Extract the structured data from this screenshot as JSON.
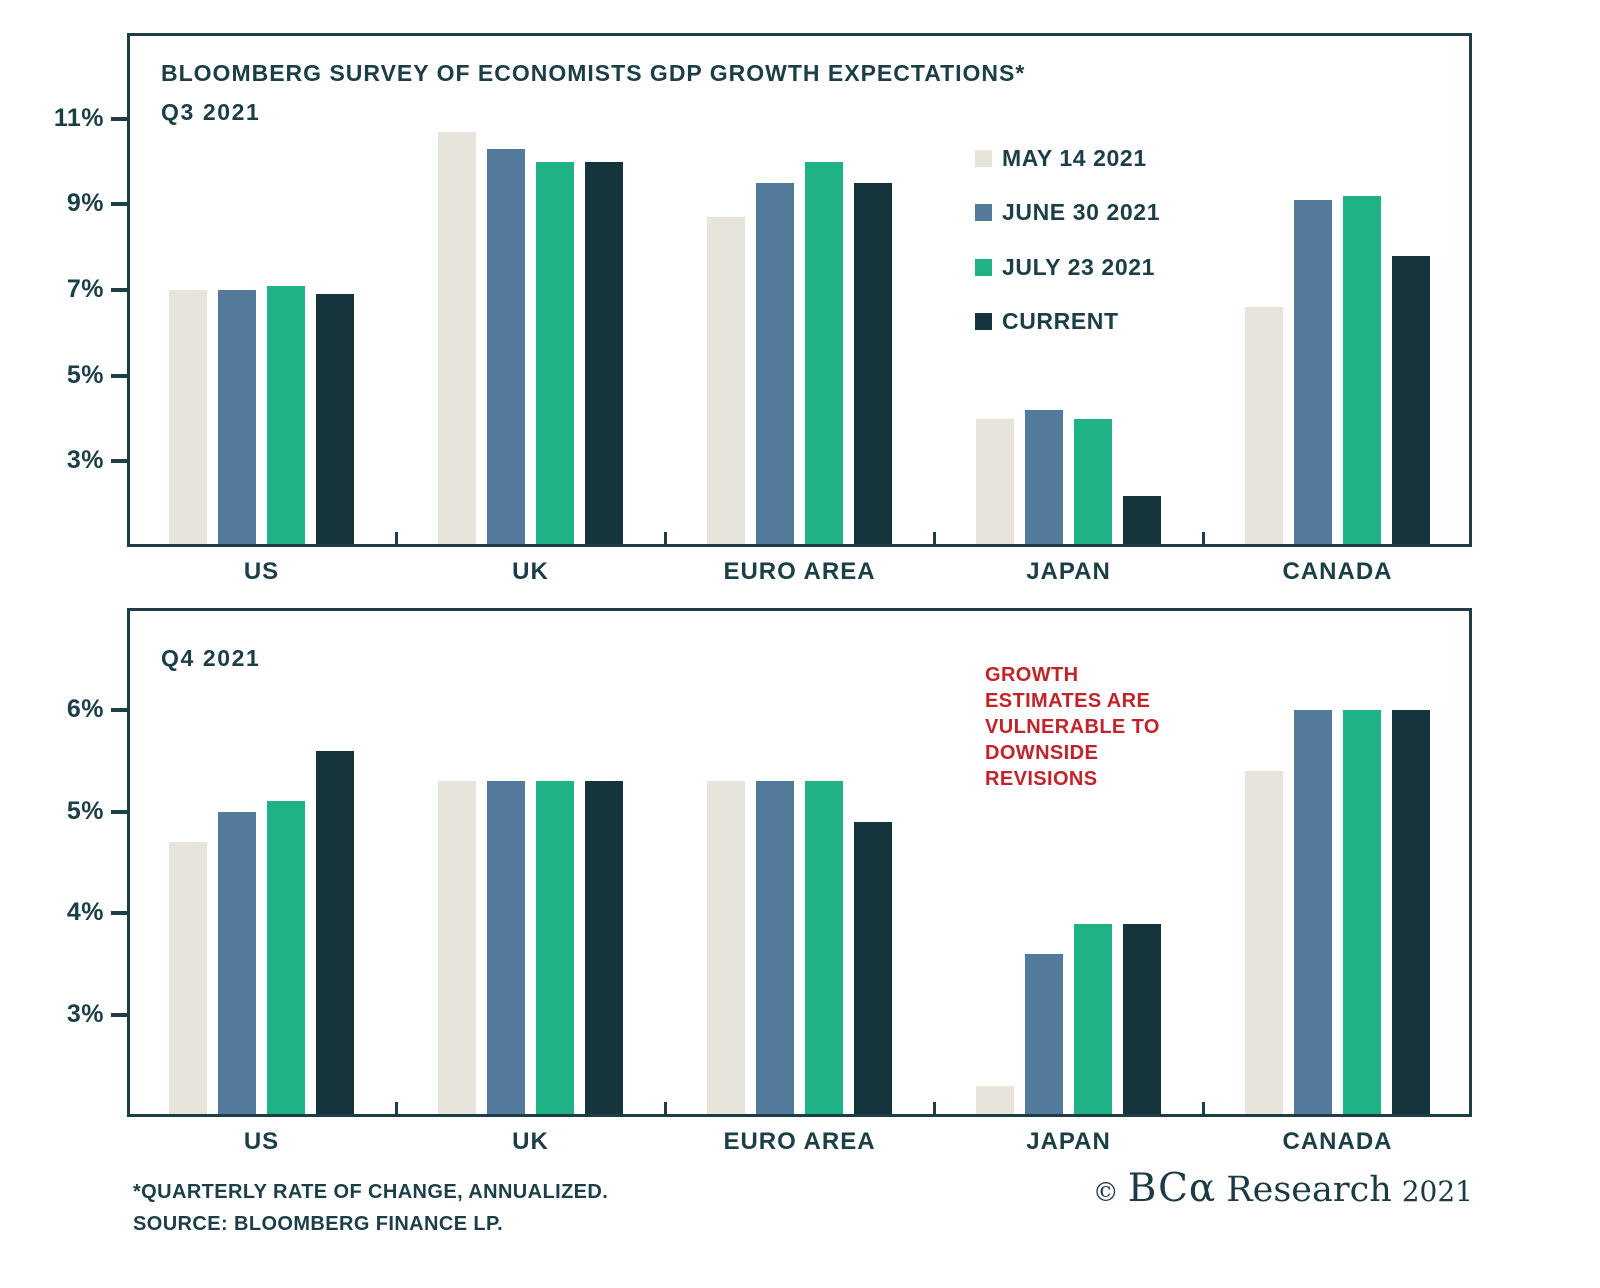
{
  "chart_data": [
    {
      "type": "bar",
      "title": "BLOOMBERG SURVEY OF ECONOMISTS GDP GROWTH EXPECTATIONS*",
      "subtitle": "Q3 2021",
      "categories": [
        "US",
        "UK",
        "EURO AREA",
        "JAPAN",
        "CANADA"
      ],
      "series": [
        {
          "name": "MAY 14 2021",
          "color": "#e7e4db",
          "values": [
            7.0,
            10.7,
            8.7,
            4.0,
            6.6
          ]
        },
        {
          "name": "JUNE 30 2021",
          "color": "#53799b",
          "values": [
            7.0,
            10.3,
            9.5,
            4.2,
            9.1
          ]
        },
        {
          "name": "JULY 23 2021",
          "color": "#1fb287",
          "values": [
            7.1,
            10.0,
            10.0,
            4.0,
            9.2
          ]
        },
        {
          "name": "CURRENT",
          "color": "#15343c",
          "values": [
            6.9,
            10.0,
            9.5,
            2.2,
            7.8
          ]
        }
      ],
      "ylim": [
        1,
        13.0
      ],
      "yticks": [
        3,
        5,
        7,
        9,
        11
      ],
      "ytick_labels": [
        "3%",
        "5%",
        "7%",
        "9%",
        "11%"
      ],
      "grid": false,
      "legend_position": "inside-right"
    },
    {
      "type": "bar",
      "subtitle": "Q4 2021",
      "categories": [
        "US",
        "UK",
        "EURO AREA",
        "JAPAN",
        "CANADA"
      ],
      "series": [
        {
          "name": "MAY 14 2021",
          "color": "#e7e4db",
          "values": [
            4.7,
            5.3,
            5.3,
            2.3,
            5.4
          ]
        },
        {
          "name": "JUNE 30 2021",
          "color": "#53799b",
          "values": [
            5.0,
            5.3,
            5.3,
            3.6,
            6.0
          ]
        },
        {
          "name": "JULY 23 2021",
          "color": "#1fb287",
          "values": [
            5.1,
            5.3,
            5.3,
            3.9,
            6.0
          ]
        },
        {
          "name": "CURRENT",
          "color": "#15343c",
          "values": [
            5.6,
            5.3,
            4.9,
            3.9,
            6.0
          ]
        }
      ],
      "ylim": [
        2,
        7.0
      ],
      "yticks": [
        3,
        4,
        5,
        6
      ],
      "ytick_labels": [
        "3%",
        "4%",
        "5%",
        "6%"
      ],
      "grid": false,
      "annotation": {
        "lines": [
          "GROWTH",
          "ESTIMATES ARE",
          "VULNERABLE TO",
          "DOWNSIDE",
          "REVISIONS"
        ],
        "color": "#c2232a"
      }
    }
  ],
  "footer": {
    "note1": "*QUARTERLY RATE OF CHANGE, ANNUALIZED.",
    "note2": "SOURCE: BLOOMBERG FINANCE LP.",
    "logo": {
      "copyright": "©",
      "brand": "BCα",
      "suffix": "Research",
      "year": "2021"
    }
  }
}
